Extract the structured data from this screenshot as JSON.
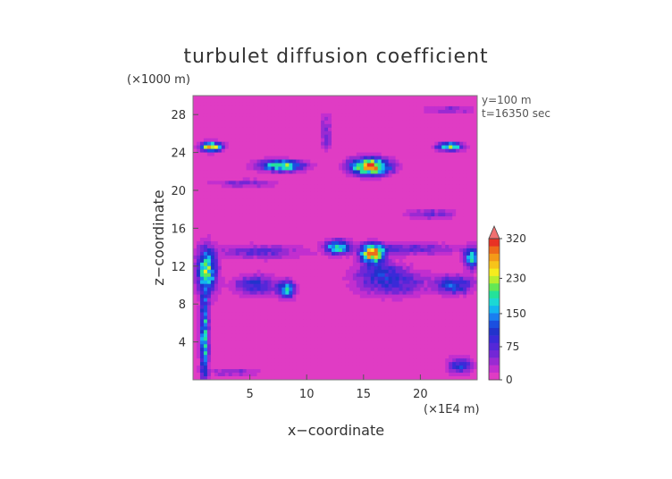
{
  "chart_data": {
    "type": "heatmap",
    "title": "turbulet diffusion coefficient",
    "xlabel": "x−coordinate",
    "ylabel": "z−coordinate",
    "x_unit": "(×1E4 m)",
    "y_unit": "(×1000 m)",
    "annotations": [
      "y=100 m",
      "t=16350 sec"
    ],
    "xlim": [
      0,
      25
    ],
    "ylim": [
      0,
      30
    ],
    "x_ticks": [
      5,
      10,
      15,
      20
    ],
    "y_ticks": [
      4,
      8,
      12,
      16,
      20,
      24,
      28
    ],
    "grid": false,
    "colorbar": {
      "labels": [
        "0",
        "75",
        "150",
        "230",
        "320"
      ],
      "label_values": [
        0,
        75,
        150,
        230,
        320
      ],
      "levels": [
        0,
        15,
        30,
        45,
        60,
        75,
        90,
        105,
        120,
        135,
        150,
        165,
        190,
        210,
        230,
        250,
        270,
        290,
        320,
        340
      ],
      "colors": [
        "#e03cc4",
        "#c22fcf",
        "#9a2ad2",
        "#7327d6",
        "#5428d8",
        "#3a2ad8",
        "#2233cc",
        "#1b4fe0",
        "#1a7ef0",
        "#14b4f0",
        "#1cd8d4",
        "#24e29a",
        "#64e854",
        "#b8ee2e",
        "#f5ec1e",
        "#f7c41a",
        "#f49a18",
        "#ee6a1a",
        "#e83224",
        "#f07070"
      ],
      "extend": "max"
    },
    "background_value": 3,
    "features": [
      {
        "x": 1.0,
        "z": 4.5,
        "rx": 0.35,
        "rz": 4.5,
        "peak": 165
      },
      {
        "x": 1.2,
        "z": 11.5,
        "rx": 0.8,
        "rz": 2.2,
        "peak": 185
      },
      {
        "x": 1.6,
        "z": 24.6,
        "rx": 0.9,
        "rz": 0.45,
        "peak": 240
      },
      {
        "x": 7.8,
        "z": 22.6,
        "rx": 1.8,
        "rz": 0.55,
        "peak": 200
      },
      {
        "x": 15.6,
        "z": 22.5,
        "rx": 1.6,
        "rz": 0.8,
        "peak": 290
      },
      {
        "x": 22.6,
        "z": 24.6,
        "rx": 1.0,
        "rz": 0.4,
        "peak": 210
      },
      {
        "x": 12.7,
        "z": 14.0,
        "rx": 1.0,
        "rz": 0.7,
        "peak": 170
      },
      {
        "x": 15.8,
        "z": 13.3,
        "rx": 0.9,
        "rz": 0.9,
        "peak": 290
      },
      {
        "x": 8.2,
        "z": 9.5,
        "rx": 0.7,
        "rz": 0.8,
        "peak": 170
      },
      {
        "x": 5.5,
        "z": 10.0,
        "rx": 1.8,
        "rz": 1.0,
        "peak": 85
      },
      {
        "x": 17.5,
        "z": 10.2,
        "rx": 3.0,
        "rz": 1.3,
        "peak": 75
      },
      {
        "x": 23.0,
        "z": 10.0,
        "rx": 1.5,
        "rz": 0.9,
        "peak": 110
      },
      {
        "x": 24.5,
        "z": 12.9,
        "rx": 0.6,
        "rz": 1.0,
        "peak": 170
      },
      {
        "x": 6.0,
        "z": 13.5,
        "rx": 3.5,
        "rz": 0.7,
        "peak": 60
      },
      {
        "x": 19.0,
        "z": 13.8,
        "rx": 4.0,
        "rz": 0.6,
        "peak": 60
      },
      {
        "x": 16.5,
        "z": 11.5,
        "rx": 2.0,
        "rz": 1.0,
        "peak": 55
      },
      {
        "x": 4.5,
        "z": 20.7,
        "rx": 2.5,
        "rz": 0.4,
        "peak": 50
      },
      {
        "x": 21.0,
        "z": 17.5,
        "rx": 2.0,
        "rz": 0.5,
        "peak": 55
      },
      {
        "x": 11.7,
        "z": 26.0,
        "rx": 0.5,
        "rz": 1.8,
        "peak": 50
      },
      {
        "x": 22.5,
        "z": 28.5,
        "rx": 2.0,
        "rz": 0.4,
        "peak": 45
      },
      {
        "x": 23.5,
        "z": 1.5,
        "rx": 1.0,
        "rz": 0.8,
        "peak": 95
      },
      {
        "x": 3.5,
        "z": 0.8,
        "rx": 2.0,
        "rz": 0.4,
        "peak": 45
      }
    ]
  }
}
